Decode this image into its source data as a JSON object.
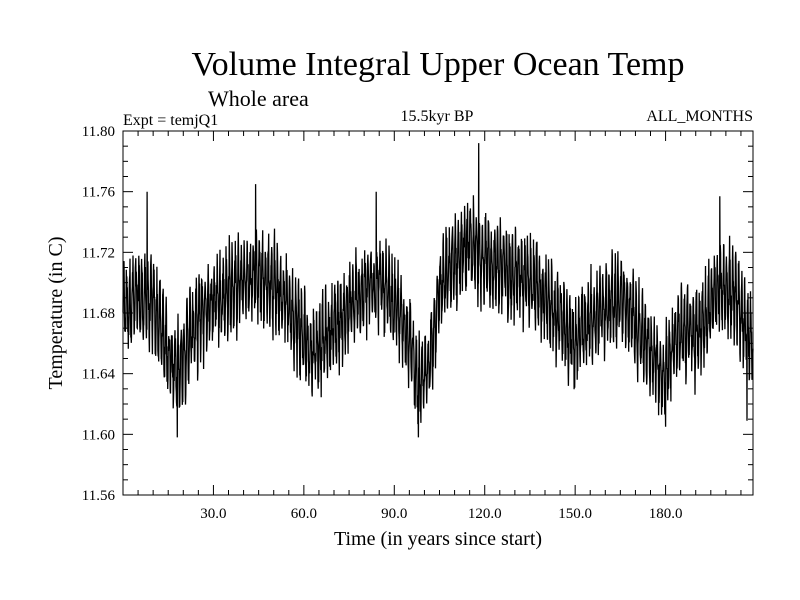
{
  "chart_data": {
    "type": "line",
    "title": "Volume Integral Upper Ocean Temp",
    "subtitle": "Whole area",
    "experiment": "Expt = temjQ1",
    "period": "15.5kyr BP",
    "season": "ALL_MONTHS",
    "xlabel": "Time (in years since start)",
    "ylabel": "Temperature (in C)",
    "xlim": [
      0,
      209
    ],
    "ylim": [
      11.56,
      11.8
    ],
    "xticks": [
      30,
      60,
      90,
      120,
      150,
      180
    ],
    "xtick_labels": [
      "30.0",
      "60.0",
      "90.0",
      "120.0",
      "150.0",
      "180.0"
    ],
    "yticks": [
      11.56,
      11.6,
      11.64,
      11.68,
      11.72,
      11.76,
      11.8
    ],
    "ytick_labels": [
      "11.56",
      "11.60",
      "11.64",
      "11.68",
      "11.72",
      "11.76",
      "11.80"
    ],
    "series": [
      {
        "name": "temperature",
        "color": "#000000",
        "samples_per_year": 12,
        "baseline_anchors": {
          "x": [
            0,
            5,
            10,
            15,
            18,
            22,
            28,
            35,
            45,
            50,
            55,
            62,
            66,
            72,
            80,
            85,
            90,
            95,
            98,
            101,
            105,
            110,
            115,
            120,
            125,
            130,
            135,
            140,
            145,
            150,
            155,
            160,
            165,
            170,
            175,
            179,
            185,
            190,
            195,
            200,
            205,
            209
          ],
          "y": [
            11.685,
            11.69,
            11.685,
            11.655,
            11.64,
            11.665,
            11.685,
            11.695,
            11.705,
            11.7,
            11.685,
            11.655,
            11.66,
            11.675,
            11.695,
            11.7,
            11.685,
            11.665,
            11.63,
            11.64,
            11.695,
            11.715,
            11.725,
            11.715,
            11.71,
            11.705,
            11.7,
            11.69,
            11.675,
            11.66,
            11.675,
            11.685,
            11.69,
            11.675,
            11.655,
            11.64,
            11.67,
            11.665,
            11.685,
            11.7,
            11.68,
            11.66
          ]
        },
        "seasonal_amplitude": 0.028,
        "noise_amplitude": 0.012,
        "peak_values": [
          {
            "x": 8,
            "y": 11.76
          },
          {
            "x": 44,
            "y": 11.765
          },
          {
            "x": 84,
            "y": 11.76
          },
          {
            "x": 118,
            "y": 11.792
          },
          {
            "x": 198,
            "y": 11.757
          }
        ],
        "trough_values": [
          {
            "x": 18,
            "y": 11.598
          },
          {
            "x": 98,
            "y": 11.598
          },
          {
            "x": 180,
            "y": 11.605
          },
          {
            "x": 207,
            "y": 11.609
          }
        ]
      }
    ]
  }
}
